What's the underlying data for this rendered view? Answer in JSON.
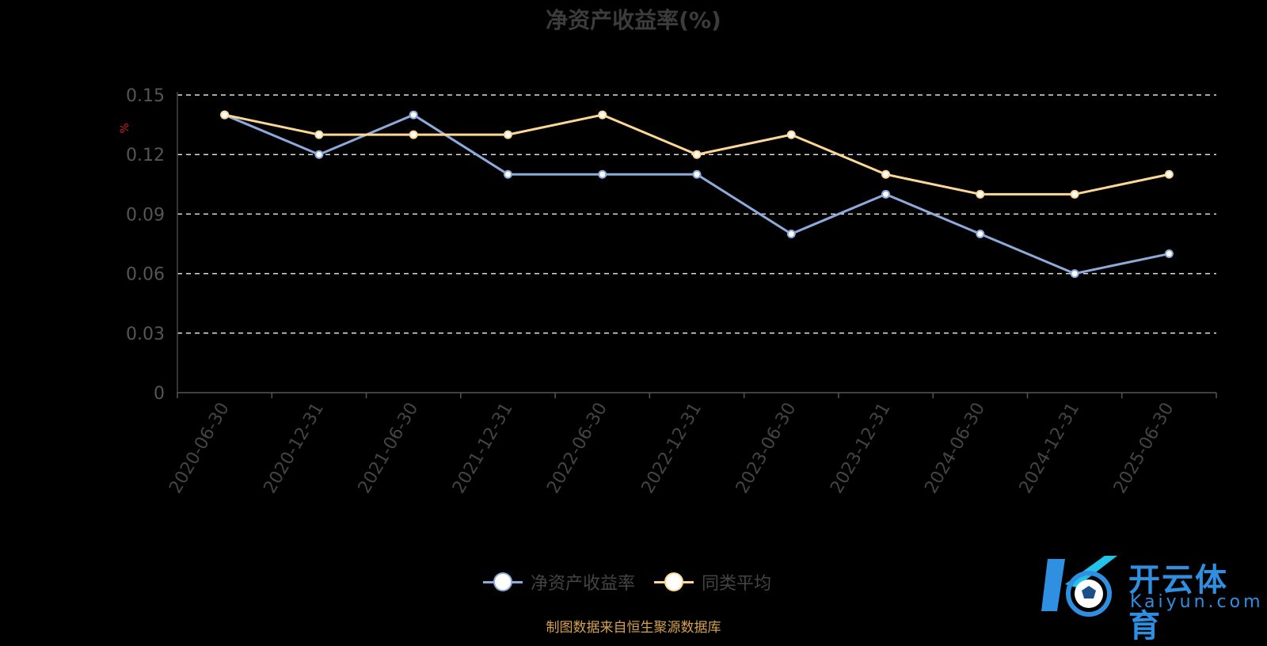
{
  "chart_data": {
    "type": "line",
    "title": "净资产收益率(%)",
    "ylabel": "%",
    "xlabel": "",
    "ylim": [
      0,
      0.15
    ],
    "yticks": [
      "0",
      "0.03",
      "0.06",
      "0.09",
      "0.12",
      "0.15"
    ],
    "ytick_values": [
      0,
      0.03,
      0.06,
      0.09,
      0.12,
      0.15
    ],
    "categories": [
      "2020-06-30",
      "2020-12-31",
      "2021-06-30",
      "2021-12-31",
      "2022-06-30",
      "2022-12-31",
      "2023-06-30",
      "2023-12-31",
      "2024-06-30",
      "2024-12-31",
      "2025-06-30"
    ],
    "series": [
      {
        "name": "净资产收益率",
        "color": "#8eaadb",
        "values": [
          0.14,
          0.12,
          0.14,
          0.11,
          0.11,
          0.11,
          0.08,
          0.1,
          0.08,
          0.06,
          0.07
        ]
      },
      {
        "name": "同类平均",
        "color": "#fdd795",
        "values": [
          0.14,
          0.13,
          0.13,
          0.13,
          0.14,
          0.12,
          0.13,
          0.11,
          0.1,
          0.1,
          0.11
        ]
      }
    ],
    "grid": true,
    "grid_style": "dashed",
    "legend_position": "bottom-center"
  },
  "footer": {
    "source": "制图数据来自恒生聚源数据库"
  },
  "watermark": {
    "brand": "开云体育",
    "domain": "Kaiyun.com",
    "color": "#2f8fe0"
  }
}
